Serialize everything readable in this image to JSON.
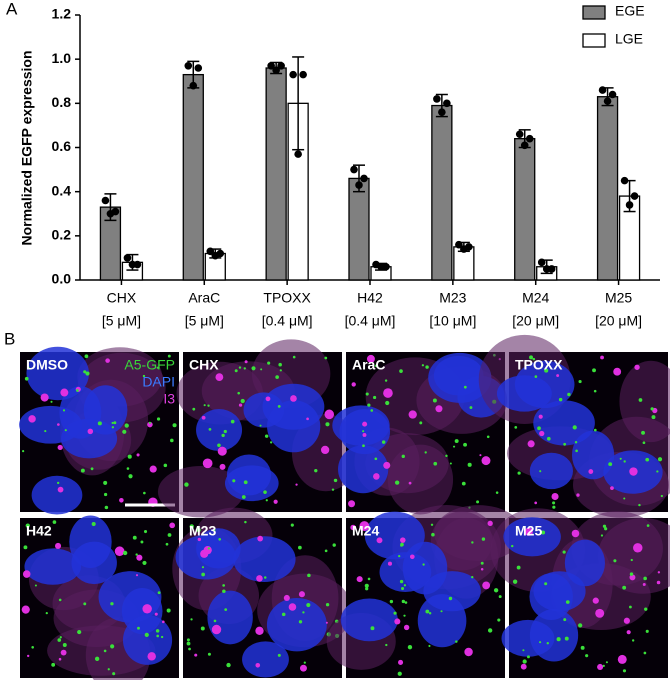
{
  "panel_labels": [
    "A",
    "B"
  ],
  "chart_data": {
    "type": "bar",
    "y_label": "Normalized EGFP expression",
    "categories": [
      "CHX",
      "AraC",
      "TPOXX",
      "H42",
      "M23",
      "M24",
      "M25"
    ],
    "concentrations": [
      "[5 μM]",
      "[5 μM]",
      "[0.4 μM]",
      "[0.4 μM]",
      "[10 μM]",
      "[20 μM]",
      "[20 μM]"
    ],
    "ylim": [
      0,
      1.2
    ],
    "yticks": [
      {
        "value": 0,
        "label": "0.0"
      },
      0.2,
      0.4,
      0.6,
      0.8,
      {
        "value": 1,
        "label": "1.0"
      },
      1.2
    ],
    "legend": "top-right",
    "series": [
      {
        "name": "EGE",
        "color": "#808080",
        "values": [
          0.33,
          0.93,
          0.96,
          0.46,
          0.79,
          0.64,
          0.83
        ],
        "errors": [
          0.06,
          0.06,
          0.025,
          0.06,
          0.05,
          0.04,
          0.04
        ],
        "points": [
          [
            0.36,
            0.31,
            0.3
          ],
          [
            0.97,
            0.96,
            0.88
          ],
          [
            0.97,
            0.97,
            0.95
          ],
          [
            0.5,
            0.46,
            0.43
          ],
          [
            0.82,
            0.8,
            0.76
          ],
          [
            0.66,
            0.64,
            0.61
          ],
          [
            0.86,
            0.84,
            0.81
          ]
        ]
      },
      {
        "name": "LGE",
        "color": "#ffffff",
        "values": [
          0.08,
          0.12,
          0.8,
          0.06,
          0.15,
          0.06,
          0.38
        ],
        "errors": [
          0.035,
          0.02,
          0.21,
          0.015,
          0.02,
          0.03,
          0.07
        ],
        "points": [
          [
            0.1,
            0.07,
            0.07
          ],
          [
            0.13,
            0.12,
            0.11
          ],
          [
            0.93,
            0.93,
            0.57
          ],
          [
            0.07,
            0.06,
            0.06
          ],
          [
            0.16,
            0.15,
            0.14
          ],
          [
            0.08,
            0.05,
            0.05
          ],
          [
            0.45,
            0.38,
            0.34
          ]
        ]
      }
    ]
  },
  "images": {
    "labels": [
      "DMSO",
      "CHX",
      "AraC",
      "TPOXX",
      "H42",
      "M23",
      "M24",
      "M25"
    ],
    "channels": [
      {
        "name": "A5-GFP",
        "color": "#39d639"
      },
      {
        "name": "DAPI",
        "color": "#3a7bff"
      },
      {
        "name": "I3",
        "color": "#e040e0"
      }
    ]
  }
}
